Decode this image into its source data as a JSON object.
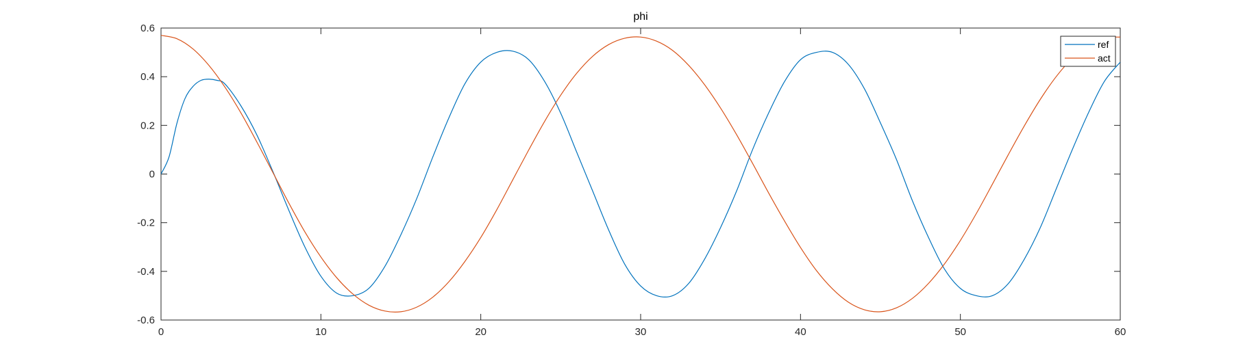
{
  "chart_data": {
    "type": "line",
    "title": "phi",
    "xlabel": "",
    "ylabel": "",
    "xlim": [
      0,
      60
    ],
    "ylim": [
      -0.6,
      0.6
    ],
    "xticks": [
      0,
      10,
      20,
      30,
      40,
      50,
      60
    ],
    "xtick_labels": [
      "0",
      "10",
      "20",
      "30",
      "40",
      "50",
      "60"
    ],
    "yticks": [
      -0.6,
      -0.4,
      -0.2,
      0,
      0.2,
      0.4,
      0.6
    ],
    "ytick_labels": [
      "-0.6",
      "-0.4",
      "-0.2",
      "0",
      "0.2",
      "0.4",
      "0.6"
    ],
    "grid": false,
    "legend_position": "top-right",
    "series": [
      {
        "name": "ref",
        "color": "#0072BD",
        "x": [
          0,
          0.5,
          1,
          1.5,
          2,
          2.5,
          3,
          3.5,
          4,
          5,
          6,
          7,
          8,
          9,
          10,
          11,
          12,
          13,
          14,
          15,
          16,
          17,
          18,
          19,
          20,
          21,
          22,
          23,
          24,
          25,
          26,
          27,
          28,
          29,
          30,
          31,
          32,
          33,
          34,
          35,
          36,
          37,
          38,
          39,
          40,
          41,
          42,
          43,
          44,
          45,
          46,
          47,
          48,
          49,
          50,
          51,
          52,
          53,
          54,
          55,
          56,
          57,
          58,
          59,
          60
        ],
        "y": [
          0,
          0.07,
          0.21,
          0.31,
          0.36,
          0.385,
          0.39,
          0.385,
          0.37,
          0.28,
          0.16,
          0.01,
          -0.15,
          -0.3,
          -0.42,
          -0.49,
          -0.5,
          -0.47,
          -0.38,
          -0.25,
          -0.1,
          0.07,
          0.23,
          0.37,
          0.46,
          0.5,
          0.505,
          0.47,
          0.38,
          0.25,
          0.09,
          -0.07,
          -0.23,
          -0.37,
          -0.46,
          -0.5,
          -0.5,
          -0.45,
          -0.35,
          -0.22,
          -0.07,
          0.1,
          0.25,
          0.38,
          0.47,
          0.5,
          0.5,
          0.45,
          0.35,
          0.21,
          0.06,
          -0.11,
          -0.26,
          -0.39,
          -0.47,
          -0.5,
          -0.5,
          -0.45,
          -0.35,
          -0.22,
          -0.06,
          0.1,
          0.25,
          0.38,
          0.46
        ]
      },
      {
        "name": "act",
        "color": "#D95319",
        "x": [
          0,
          1,
          2,
          3,
          4,
          5,
          6,
          7,
          8,
          9,
          10,
          11,
          12,
          13,
          14,
          15,
          16,
          17,
          18,
          19,
          20,
          21,
          22,
          23,
          24,
          25,
          26,
          27,
          28,
          29,
          30,
          31,
          32,
          33,
          34,
          35,
          36,
          37,
          38,
          39,
          40,
          41,
          42,
          43,
          44,
          45,
          46,
          47,
          48,
          49,
          50,
          51,
          52,
          53,
          54,
          55,
          56,
          57,
          58,
          59,
          60
        ],
        "y": [
          0.57,
          0.556,
          0.514,
          0.446,
          0.357,
          0.251,
          0.131,
          0.006,
          -0.12,
          -0.238,
          -0.341,
          -0.427,
          -0.493,
          -0.539,
          -0.563,
          -0.566,
          -0.547,
          -0.506,
          -0.443,
          -0.36,
          -0.261,
          -0.147,
          -0.024,
          0.099,
          0.217,
          0.324,
          0.414,
          0.484,
          0.532,
          0.558,
          0.563,
          0.546,
          0.508,
          0.447,
          0.367,
          0.271,
          0.162,
          0.044,
          -0.077,
          -0.193,
          -0.302,
          -0.397,
          -0.472,
          -0.527,
          -0.558,
          -0.566,
          -0.55,
          -0.511,
          -0.45,
          -0.37,
          -0.273,
          -0.162,
          -0.042,
          0.08,
          0.198,
          0.307,
          0.401,
          0.476,
          0.53,
          0.559,
          0.563
        ]
      }
    ]
  }
}
